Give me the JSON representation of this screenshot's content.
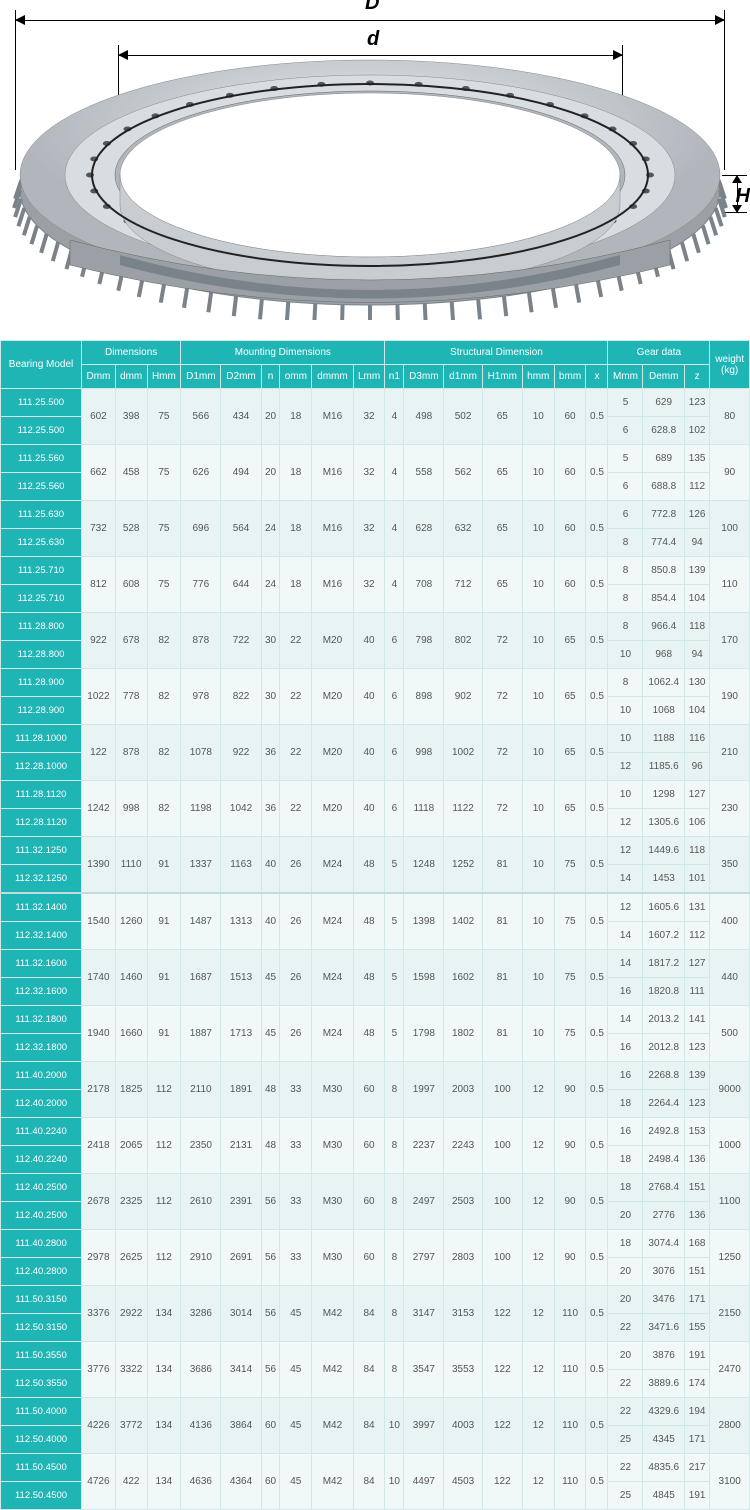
{
  "diagram": {
    "label_D": "D",
    "label_d": "d",
    "label_H": "H",
    "ring_outer_color": "#b8bec4",
    "ring_inner_color": "#d8dde2",
    "ring_highlight": "#e8ecef",
    "ring_shadow": "#7a828a"
  },
  "table": {
    "header_bg": "#1fb5b5",
    "header_fg": "#ffffff",
    "cell_bg_a": "#e8f4f4",
    "cell_bg_b": "#f0f8f8",
    "cell_fg": "#555555",
    "border_color": "#d0e8e8",
    "font_size": 10,
    "groups": [
      {
        "label": "Bearing Model",
        "span": 1
      },
      {
        "label": "Dimensions",
        "span": 3
      },
      {
        "label": "Mounting Dimensions",
        "span": 6
      },
      {
        "label": "Structural Dimension",
        "span": 7
      },
      {
        "label": "Gear data",
        "span": 3
      },
      {
        "label": "weight (kg)",
        "span": 1
      }
    ],
    "columns": [
      "Dmm",
      "dmm",
      "Hmm",
      "D1mm",
      "D2mm",
      "n",
      "omm",
      "dmmm",
      "Lmm",
      "n1",
      "D3mm",
      "d1mm",
      "H1mm",
      "hmm",
      "bmm",
      "x",
      "Mmm",
      "Demm",
      "z"
    ],
    "rows": [
      {
        "models": [
          "111.25.500",
          "112.25.500"
        ],
        "shared": [
          "602",
          "398",
          "75",
          "566",
          "434",
          "20",
          "18",
          "M16",
          "32",
          "4",
          "498",
          "502",
          "65",
          "10",
          "60",
          "0.5"
        ],
        "split": [
          [
            "5",
            "629",
            "123"
          ],
          [
            "6",
            "628.8",
            "102"
          ]
        ],
        "weight": "80"
      },
      {
        "models": [
          "111.25.560",
          "112.25.560"
        ],
        "shared": [
          "662",
          "458",
          "75",
          "626",
          "494",
          "20",
          "18",
          "M16",
          "32",
          "4",
          "558",
          "562",
          "65",
          "10",
          "60",
          "0.5"
        ],
        "split": [
          [
            "5",
            "689",
            "135"
          ],
          [
            "6",
            "688.8",
            "112"
          ]
        ],
        "weight": "90"
      },
      {
        "models": [
          "111.25.630",
          "112.25.630"
        ],
        "shared": [
          "732",
          "528",
          "75",
          "696",
          "564",
          "24",
          "18",
          "M16",
          "32",
          "4",
          "628",
          "632",
          "65",
          "10",
          "60",
          "0.5"
        ],
        "split": [
          [
            "6",
            "772.8",
            "126"
          ],
          [
            "8",
            "774.4",
            "94"
          ]
        ],
        "weight": "100"
      },
      {
        "models": [
          "111.25.710",
          "112.25.710"
        ],
        "shared": [
          "812",
          "608",
          "75",
          "776",
          "644",
          "24",
          "18",
          "M16",
          "32",
          "4",
          "708",
          "712",
          "65",
          "10",
          "60",
          "0.5"
        ],
        "split": [
          [
            "8",
            "850.8",
            "139"
          ],
          [
            "8",
            "854.4",
            "104"
          ]
        ],
        "weight": "110"
      },
      {
        "models": [
          "111.28.800",
          "112.28.800"
        ],
        "shared": [
          "922",
          "678",
          "82",
          "878",
          "722",
          "30",
          "22",
          "M20",
          "40",
          "6",
          "798",
          "802",
          "72",
          "10",
          "65",
          "0.5"
        ],
        "split": [
          [
            "8",
            "966.4",
            "118"
          ],
          [
            "10",
            "968",
            "94"
          ]
        ],
        "weight": "170"
      },
      {
        "models": [
          "111.28.900",
          "112.28.900"
        ],
        "shared": [
          "1022",
          "778",
          "82",
          "978",
          "822",
          "30",
          "22",
          "M20",
          "40",
          "6",
          "898",
          "902",
          "72",
          "10",
          "65",
          "0.5"
        ],
        "split": [
          [
            "8",
            "1062.4",
            "130"
          ],
          [
            "10",
            "1068",
            "104"
          ]
        ],
        "weight": "190"
      },
      {
        "models": [
          "111.28.1000",
          "112.28.1000"
        ],
        "shared": [
          "122",
          "878",
          "82",
          "1078",
          "922",
          "36",
          "22",
          "M20",
          "40",
          "6",
          "998",
          "1002",
          "72",
          "10",
          "65",
          "0.5"
        ],
        "split": [
          [
            "10",
            "1188",
            "116"
          ],
          [
            "12",
            "1185.6",
            "96"
          ]
        ],
        "weight": "210"
      },
      {
        "models": [
          "111.28.1120",
          "112.28.1120"
        ],
        "shared": [
          "1242",
          "998",
          "82",
          "1198",
          "1042",
          "36",
          "22",
          "M20",
          "40",
          "6",
          "1118",
          "1122",
          "72",
          "10",
          "65",
          "0.5"
        ],
        "split": [
          [
            "10",
            "1298",
            "127"
          ],
          [
            "12",
            "1305.6",
            "106"
          ]
        ],
        "weight": "230"
      },
      {
        "models": [
          "111.32.1250",
          "112.32.1250"
        ],
        "shared": [
          "1390",
          "1110",
          "91",
          "1337",
          "1163",
          "40",
          "26",
          "M24",
          "48",
          "5",
          "1248",
          "1252",
          "81",
          "10",
          "75",
          "0.5"
        ],
        "split": [
          [
            "12",
            "1449.6",
            "118"
          ],
          [
            "14",
            "1453",
            "101"
          ]
        ],
        "weight": "350"
      },
      {
        "models": [
          "111.32.1400",
          "112.32.1400"
        ],
        "shared": [
          "1540",
          "1260",
          "91",
          "1487",
          "1313",
          "40",
          "26",
          "M24",
          "48",
          "5",
          "1398",
          "1402",
          "81",
          "10",
          "75",
          "0.5"
        ],
        "split": [
          [
            "12",
            "1605.6",
            "131"
          ],
          [
            "14",
            "1607.2",
            "112"
          ]
        ],
        "weight": "400",
        "sep": true
      },
      {
        "models": [
          "111.32.1600",
          "112.32.1600"
        ],
        "shared": [
          "1740",
          "1460",
          "91",
          "1687",
          "1513",
          "45",
          "26",
          "M24",
          "48",
          "5",
          "1598",
          "1602",
          "81",
          "10",
          "75",
          "0.5"
        ],
        "split": [
          [
            "14",
            "1817.2",
            "127"
          ],
          [
            "16",
            "1820.8",
            "111"
          ]
        ],
        "weight": "440"
      },
      {
        "models": [
          "111.32.1800",
          "112.32.1800"
        ],
        "shared": [
          "1940",
          "1660",
          "91",
          "1887",
          "1713",
          "45",
          "26",
          "M24",
          "48",
          "5",
          "1798",
          "1802",
          "81",
          "10",
          "75",
          "0.5"
        ],
        "split": [
          [
            "14",
            "2013.2",
            "141"
          ],
          [
            "16",
            "2012.8",
            "123"
          ]
        ],
        "weight": "500"
      },
      {
        "models": [
          "111.40.2000",
          "112.40.2000"
        ],
        "shared": [
          "2178",
          "1825",
          "112",
          "2110",
          "1891",
          "48",
          "33",
          "M30",
          "60",
          "8",
          "1997",
          "2003",
          "100",
          "12",
          "90",
          "0.5"
        ],
        "split": [
          [
            "16",
            "2268.8",
            "139"
          ],
          [
            "18",
            "2264.4",
            "123"
          ]
        ],
        "weight": "9000"
      },
      {
        "models": [
          "111.40.2240",
          "112.40.2240"
        ],
        "shared": [
          "2418",
          "2065",
          "112",
          "2350",
          "2131",
          "48",
          "33",
          "M30",
          "60",
          "8",
          "2237",
          "2243",
          "100",
          "12",
          "90",
          "0.5"
        ],
        "split": [
          [
            "16",
            "2492.8",
            "153"
          ],
          [
            "18",
            "2498.4",
            "136"
          ]
        ],
        "weight": "1000"
      },
      {
        "models": [
          "112.40.2500",
          "112.40.2500"
        ],
        "shared": [
          "2678",
          "2325",
          "112",
          "2610",
          "2391",
          "56",
          "33",
          "M30",
          "60",
          "8",
          "2497",
          "2503",
          "100",
          "12",
          "90",
          "0.5"
        ],
        "split": [
          [
            "18",
            "2768.4",
            "151"
          ],
          [
            "20",
            "2776",
            "136"
          ]
        ],
        "weight": "1100"
      },
      {
        "models": [
          "111.40.2800",
          "112.40.2800"
        ],
        "shared": [
          "2978",
          "2625",
          "112",
          "2910",
          "2691",
          "56",
          "33",
          "M30",
          "60",
          "8",
          "2797",
          "2803",
          "100",
          "12",
          "90",
          "0.5"
        ],
        "split": [
          [
            "18",
            "3074.4",
            "168"
          ],
          [
            "20",
            "3076",
            "151"
          ]
        ],
        "weight": "1250"
      },
      {
        "models": [
          "111.50.3150",
          "112.50.3150"
        ],
        "shared": [
          "3376",
          "2922",
          "134",
          "3286",
          "3014",
          "56",
          "45",
          "M42",
          "84",
          "8",
          "3147",
          "3153",
          "122",
          "12",
          "110",
          "0.5"
        ],
        "split": [
          [
            "20",
            "3476",
            "171"
          ],
          [
            "22",
            "3471.6",
            "155"
          ]
        ],
        "weight": "2150"
      },
      {
        "models": [
          "111.50.3550",
          "112.50.3550"
        ],
        "shared": [
          "3776",
          "3322",
          "134",
          "3686",
          "3414",
          "56",
          "45",
          "M42",
          "84",
          "8",
          "3547",
          "3553",
          "122",
          "12",
          "110",
          "0.5"
        ],
        "split": [
          [
            "20",
            "3876",
            "191"
          ],
          [
            "22",
            "3889.6",
            "174"
          ]
        ],
        "weight": "2470"
      },
      {
        "models": [
          "111.50.4000",
          "112.50.4000"
        ],
        "shared": [
          "4226",
          "3772",
          "134",
          "4136",
          "3864",
          "60",
          "45",
          "M42",
          "84",
          "10",
          "3997",
          "4003",
          "122",
          "12",
          "110",
          "0.5"
        ],
        "split": [
          [
            "22",
            "4329.6",
            "194"
          ],
          [
            "25",
            "4345",
            "171"
          ]
        ],
        "weight": "2800"
      },
      {
        "models": [
          "111.50.4500",
          "112.50.4500"
        ],
        "shared": [
          "4726",
          "422",
          "134",
          "4636",
          "4364",
          "60",
          "45",
          "M42",
          "84",
          "10",
          "4497",
          "4503",
          "122",
          "12",
          "110",
          "0.5"
        ],
        "split": [
          [
            "22",
            "4835.6",
            "217"
          ],
          [
            "25",
            "4845",
            "191"
          ]
        ],
        "weight": "3100"
      }
    ]
  }
}
